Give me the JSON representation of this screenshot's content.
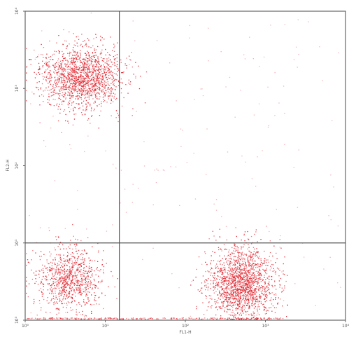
{
  "chart_data": {
    "type": "scatter",
    "xlabel": "FL1-H",
    "ylabel": "FL2-H",
    "x_scale": "log",
    "y_scale": "log",
    "xlim": [
      1,
      10000
    ],
    "ylim": [
      1,
      10000
    ],
    "x_ticks": [
      "10⁰",
      "10¹",
      "10²",
      "10³",
      "10⁴"
    ],
    "y_ticks": [
      "10⁰",
      "10¹",
      "10²",
      "10³",
      "10⁴"
    ],
    "quadrant_gate": {
      "x": 15,
      "y": 10
    },
    "grid": false,
    "legend": "none",
    "dot_color": "#e0202a",
    "populations": [
      {
        "center": [
          5,
          1400
        ],
        "spread": [
          1.8,
          1.6
        ],
        "count": 1600,
        "quadrant": "upper-left"
      },
      {
        "center": [
          3.5,
          3.5
        ],
        "spread": [
          1.6,
          1.6
        ],
        "count": 900,
        "quadrant": "lower-left"
      },
      {
        "center": [
          500,
          3
        ],
        "spread": [
          1.6,
          1.7
        ],
        "count": 1700,
        "quadrant": "lower-right"
      }
    ]
  }
}
